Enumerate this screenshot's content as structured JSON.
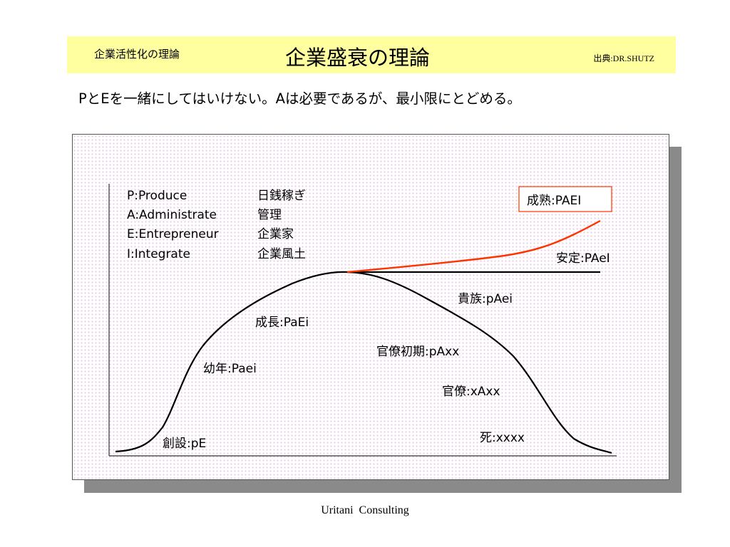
{
  "header": {
    "left_title": "企業活性化の理論",
    "main_title": "企業盛衰の理論",
    "source": "出典:DR.SHUTZ"
  },
  "subtitle": "PとEを一緒にしてはいけない。Aは必要であるが、最小限にとどめる。",
  "legend": {
    "items": [
      {
        "code": "P:Produce",
        "meaning": "日銭稼ぎ"
      },
      {
        "code": "A:Administrate",
        "meaning": "管理"
      },
      {
        "code": "E:Entrepreneur",
        "meaning": "企業家"
      },
      {
        "code": "I:Integrate",
        "meaning": "企業風土"
      }
    ]
  },
  "stages": {
    "founding": "創設:pE",
    "infancy": "幼年:Paei",
    "growth": "成長:PaEi",
    "maturity": "成熟:PAEI",
    "stability": "安定:PAeI",
    "aristocracy": "貴族:pAei",
    "early_bureaucracy": "官僚初期:pAxx",
    "bureaucracy": "官僚:xAxx",
    "death": "死:xxxx"
  },
  "colors": {
    "header_bg": "#ffffa0",
    "maturity_line": "#ff3300",
    "maturity_box_border": "#ff3300",
    "panel_dots": "#e7c8e7"
  },
  "footer": "Uritani  Consulting"
}
